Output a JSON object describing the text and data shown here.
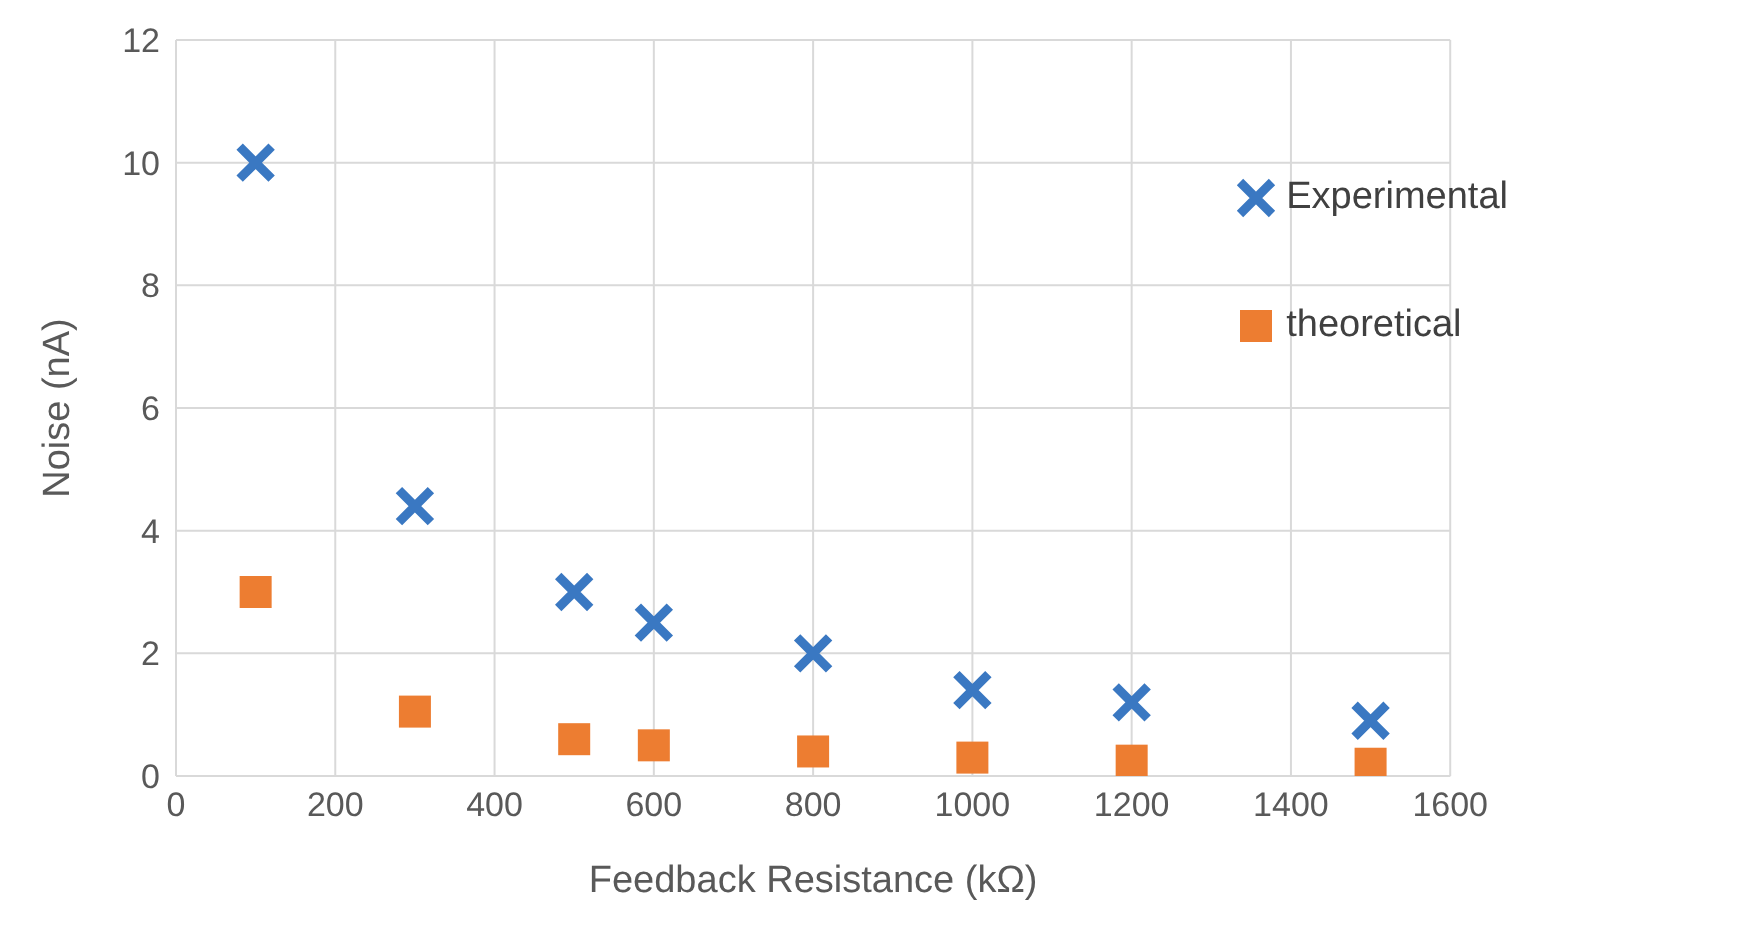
{
  "chart_data": {
    "type": "scatter",
    "xlabel": "Feedback Resistance (kΩ)",
    "ylabel": "Noise (nA)",
    "x": [
      100,
      300,
      500,
      600,
      800,
      1000,
      1200,
      1500
    ],
    "series": [
      {
        "name": "Experimental",
        "color": "#3a78c2",
        "marker": "cross",
        "values": [
          10,
          4.4,
          3.0,
          2.5,
          2.0,
          1.4,
          1.2,
          0.9
        ]
      },
      {
        "name": "theoretical",
        "color": "#ed7d31",
        "marker": "square",
        "values": [
          3.0,
          1.05,
          0.6,
          0.5,
          0.4,
          0.3,
          0.25,
          0.2
        ]
      }
    ],
    "xlim": [
      0,
      1600
    ],
    "xticks": [
      0,
      200,
      400,
      600,
      800,
      1000,
      1200,
      1400,
      1600
    ],
    "ylim": [
      0,
      12
    ],
    "yticks": [
      0,
      2,
      4,
      6,
      8,
      10,
      12
    ],
    "grid": true,
    "legend": "top right"
  }
}
